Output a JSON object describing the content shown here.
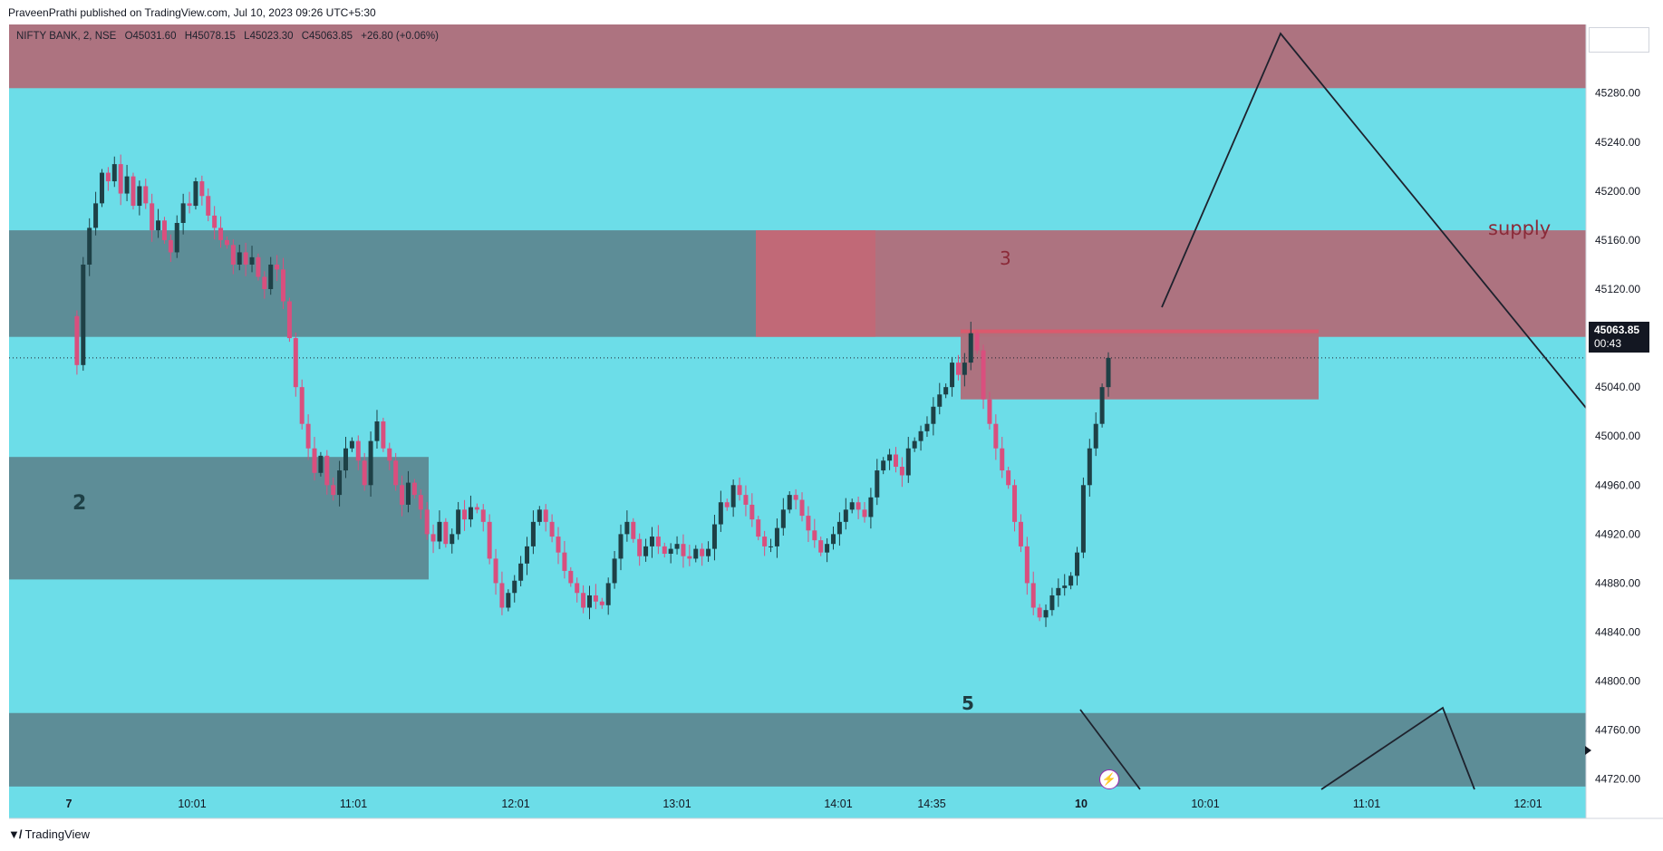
{
  "publisher_line": "PraveenPrathi published on TradingView.com, Jul 10, 2023 09:26 UTC+5:30",
  "branding": {
    "logo_icon": "tradingview-logo-icon",
    "label": "TradingView"
  },
  "legend": {
    "symbol": "NIFTY BANK, 2, NSE",
    "open": "O45031.60",
    "high": "H45078.15",
    "low": "L45023.30",
    "close": "C45063.85",
    "change": "+26.80 (+0.06%)"
  },
  "last_price": {
    "value": "45063.85",
    "countdown": "00:43"
  },
  "zones": [
    {
      "label": "",
      "kind": "supply",
      "color": "#b0707c"
    },
    {
      "label": "supply",
      "kind": "supply",
      "color": "#b0707c"
    },
    {
      "label": "3",
      "kind": "supply",
      "color": "#b0707c"
    },
    {
      "label": "",
      "kind": "supply",
      "color": "#d26070"
    },
    {
      "label": "",
      "kind": "demand",
      "color": "#5d8a94"
    },
    {
      "label": "2",
      "kind": "demand",
      "color": "#5d8a94"
    },
    {
      "label": "5",
      "kind": "demand",
      "color": "#5d8a94"
    }
  ],
  "colors": {
    "background": "#6cdde8",
    "up": "#1e4046",
    "down": "#d94f7e",
    "axis_text": "#131722"
  },
  "chart_data": {
    "type": "candlestick",
    "title": "NIFTY BANK, 2, NSE",
    "xlabel": "",
    "ylabel": "",
    "ylim": [
      44688,
      45336
    ],
    "y_ticks": [
      "45280.00",
      "45240.00",
      "45200.00",
      "45160.00",
      "45120.00",
      "45080.00",
      "45040.00",
      "45000.00",
      "44960.00",
      "44920.00",
      "44880.00",
      "44840.00",
      "44800.00",
      "44760.00",
      "44720.00"
    ],
    "x_ticks": [
      "7",
      "10:01",
      "11:01",
      "12:01",
      "13:01",
      "14:01",
      "14:35",
      "10",
      "10:01",
      "11:01",
      "12:01"
    ],
    "grid": false,
    "last_price": 45063.85,
    "path_closes": [
      45098,
      45058,
      45140,
      45170,
      45190,
      45215,
      45208,
      45222,
      45198,
      45212,
      45188,
      45204,
      45190,
      45168,
      45176,
      45160,
      45150,
      45174,
      45190,
      45188,
      45208,
      45196,
      45180,
      45170,
      45160,
      45156,
      45140,
      45150,
      45140,
      45146,
      45130,
      45120,
      45140,
      45136,
      45110,
      45080,
      45040,
      45010,
      44990,
      44970,
      44984,
      44960,
      44952,
      44972,
      44990,
      44996,
      44980,
      44960,
      44996,
      45012,
      44990,
      44980,
      44960,
      44944,
      44962,
      44952,
      44940,
      44920,
      44914,
      44930,
      44912,
      44920,
      44940,
      44932,
      44942,
      44940,
      44930,
      44900,
      44880,
      44860,
      44872,
      44882,
      44896,
      44910,
      44930,
      44940,
      44930,
      44918,
      44905,
      44890,
      44880,
      44872,
      44860,
      44870,
      44865,
      44862,
      44880,
      44900,
      44920,
      44930,
      44916,
      44902,
      44910,
      44918,
      44910,
      44904,
      44908,
      44912,
      44902,
      44900,
      44908,
      44902,
      44908,
      44928,
      44946,
      44942,
      44960,
      44952,
      44944,
      44932,
      44918,
      44910,
      44910,
      44925,
      44940,
      44952,
      44948,
      44935,
      44923,
      44915,
      44905,
      44912,
      44920,
      44930,
      44940,
      44946,
      44940,
      44934,
      44950,
      44972,
      44980,
      44985,
      44975,
      44968,
      44990,
      44996,
      45004,
      45010,
      45024,
      45034,
      45040,
      45060,
      45050,
      45060,
      45084,
      45070,
      45030,
      45010,
      44990,
      44972,
      44960,
      44930,
      44910,
      44880,
      44860,
      44852,
      44858,
      44870,
      44876,
      44878,
      44886,
      44905,
      44960,
      44990,
      45010,
      45040,
      45063.85
    ]
  }
}
